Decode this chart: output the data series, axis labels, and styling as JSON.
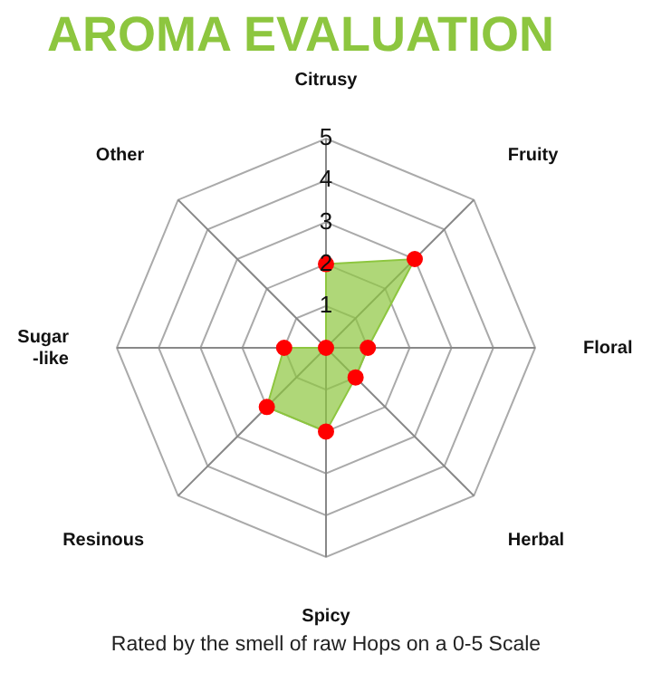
{
  "chart_data": {
    "type": "radar",
    "title": "AROMA EVALUATION",
    "categories": [
      "Citrusy",
      "Fruity",
      "Floral",
      "Herbal",
      "Spicy",
      "Resinous",
      "Sugar-like",
      "Other"
    ],
    "series": [
      {
        "color": "#8dc63f",
        "values": [
          2,
          3,
          1,
          1,
          2,
          2,
          1,
          0
        ]
      }
    ],
    "ylim": [
      0,
      5
    ],
    "yticks": [
      1,
      2,
      3,
      4,
      5
    ],
    "marker": "circle",
    "grid": true,
    "legend": false,
    "annotations": [
      "Rated by the smell of raw Hops on a 0-5 Scale"
    ]
  }
}
